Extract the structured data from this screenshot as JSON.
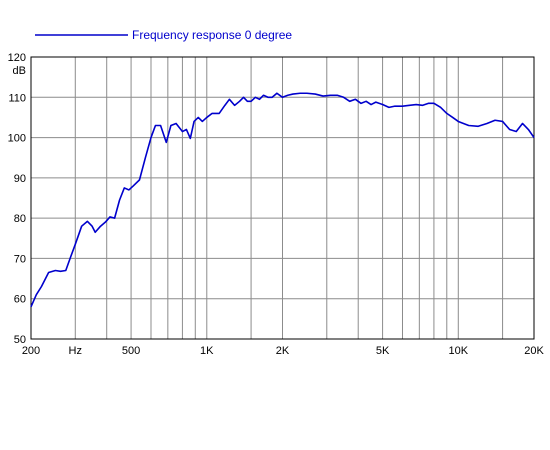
{
  "chart_data": {
    "type": "line",
    "title": "",
    "xlabel": "",
    "ylabel": "dB",
    "x_scale": "log",
    "xlim": [
      200,
      20000
    ],
    "ylim": [
      50,
      120
    ],
    "grid": true,
    "legend_placement": "top-left",
    "line_color": "#0000cc",
    "x_tick_labels": [
      {
        "value": 200,
        "label": "200"
      },
      {
        "value": 300,
        "label": "Hz"
      },
      {
        "value": 500,
        "label": "500"
      },
      {
        "value": 1000,
        "label": "1K"
      },
      {
        "value": 2000,
        "label": "2K"
      },
      {
        "value": 5000,
        "label": "5K"
      },
      {
        "value": 10000,
        "label": "10K"
      },
      {
        "value": 20000,
        "label": "20K"
      }
    ],
    "x_gridlines": [
      300,
      400,
      500,
      600,
      700,
      800,
      900,
      1000,
      1500,
      2000,
      3000,
      4000,
      5000,
      6000,
      7000,
      8000,
      9000,
      10000,
      15000
    ],
    "y_ticks": [
      50,
      60,
      70,
      80,
      90,
      100,
      110,
      120
    ],
    "series": [
      {
        "name": "Frequency response 0 degree",
        "x": [
          200,
          210,
          220,
          235,
          250,
          262,
          275,
          288,
          300,
          318,
          335,
          350,
          360,
          378,
          395,
          412,
          430,
          450,
          470,
          490,
          510,
          540,
          570,
          600,
          625,
          655,
          690,
          720,
          755,
          800,
          830,
          860,
          890,
          925,
          960,
          1000,
          1050,
          1120,
          1180,
          1230,
          1290,
          1350,
          1400,
          1450,
          1500,
          1560,
          1620,
          1680,
          1750,
          1820,
          1900,
          2000,
          2100,
          2200,
          2350,
          2500,
          2700,
          2900,
          3100,
          3300,
          3500,
          3700,
          3900,
          4100,
          4300,
          4500,
          4700,
          5000,
          5300,
          5600,
          6000,
          6400,
          6800,
          7200,
          7600,
          8000,
          8500,
          9000,
          9500,
          10000,
          11000,
          12000,
          13000,
          14000,
          15000,
          16000,
          17000,
          18000,
          19000,
          20000
        ],
        "y": [
          58.0,
          61.0,
          63.0,
          66.5,
          67.0,
          66.8,
          67.0,
          70.5,
          73.5,
          78.0,
          79.2,
          78.0,
          76.5,
          78.0,
          79.0,
          80.3,
          80.0,
          84.5,
          87.5,
          87.0,
          88.0,
          89.5,
          95.0,
          100.0,
          103.0,
          103.0,
          98.8,
          103.0,
          103.5,
          101.5,
          102.0,
          99.8,
          104.0,
          105.0,
          104.0,
          105.0,
          106.0,
          106.0,
          108.0,
          109.5,
          108.0,
          109.0,
          110.0,
          109.0,
          109.0,
          110.0,
          109.5,
          110.5,
          110.0,
          110.0,
          111.0,
          110.0,
          110.5,
          110.8,
          111.0,
          111.0,
          110.8,
          110.3,
          110.5,
          110.5,
          110.0,
          109.0,
          109.5,
          108.5,
          109.0,
          108.2,
          108.8,
          108.2,
          107.5,
          107.8,
          107.8,
          108.0,
          108.2,
          108.0,
          108.5,
          108.5,
          107.5,
          106.0,
          105.0,
          104.0,
          103.0,
          102.8,
          103.5,
          104.3,
          104.0,
          102.0,
          101.5,
          103.5,
          102.0,
          100.0
        ]
      }
    ]
  }
}
